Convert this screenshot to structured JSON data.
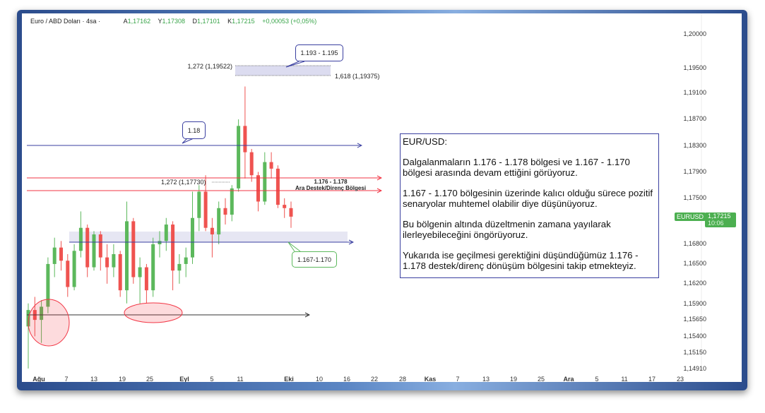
{
  "header": {
    "symbol": "Euro / ABD Doları · 4sa ·",
    "open_label": "A",
    "open": "1,17162",
    "high_label": "Y",
    "high": "1,17308",
    "low_label": "D",
    "low": "1,17101",
    "close_label": "K",
    "close": "1,17215",
    "change": "+0,00053 (+0,05%)"
  },
  "colors": {
    "up": "#5cb85c",
    "down": "#ef5350",
    "frame": "#2b4c8c",
    "accent_blue": "#3a3fa0",
    "resistance_red": "#f23645"
  },
  "y_axis": {
    "ticks": [
      "1,20000",
      "1,19500",
      "1,19100",
      "1,18700",
      "1,18300",
      "1,17900",
      "1,17500",
      "1,16800",
      "1,16500",
      "1,16200",
      "1,15900",
      "1,15650",
      "1,15400",
      "1,15150",
      "1,14910"
    ],
    "range": [
      1.1491,
      1.2
    ]
  },
  "x_axis": {
    "ticks": [
      "Ağu",
      "7",
      "13",
      "19",
      "25",
      "Eyl",
      "5",
      "11",
      "Eki",
      "10",
      "16",
      "22",
      "28",
      "Kas",
      "7",
      "13",
      "19",
      "25",
      "Ara",
      "5",
      "11",
      "17",
      "23"
    ]
  },
  "price_tag": {
    "symbol": "EURUSD",
    "price": "1,17215",
    "time": "10:06"
  },
  "annotations": {
    "fib_top_left": "1,272 (1,19522)",
    "fib_top_right": "1,618 (1,19375)",
    "callout_top": "1.193 - 1.195",
    "callout_118": "1.18",
    "fib_mid": "1,272 (1,17730)",
    "zone_title": "1.176 - 1.178",
    "zone_subtitle": "Ara Destek/Direnç Bölgesi",
    "callout_support": "1.167-1.170"
  },
  "note": {
    "title": "EUR/USD:",
    "paragraphs": [
      "Dalgalanmaların 1.176 - 1.178 bölgesi ve 1.167 - 1.170 bölgesi arasında devam ettiğini görüyoruz.",
      "1.167 - 1.170 bölgesinin üzerinde kalıcı olduğu sürece pozitif senaryolar muhtemel olabilir diye düşünüyoruz.",
      "Bu bölgenin altında düzeltmenin zamana yayılarak ilerleyebileceğini öngörüyoruz.",
      "Yukarıda ise geçilmesi gerektiğini düşündüğümüz 1.176 - 1.178 destek/direnç dönüşüm bölgesini takip etmekteyiz."
    ]
  },
  "chart_data": {
    "type": "candlestick",
    "title": "",
    "xlabel": "",
    "ylabel": "",
    "ylim": [
      1.1491,
      1.2
    ],
    "grid": false,
    "levels": [
      1.18,
      1.178,
      1.176,
      1.17,
      1.167,
      1.1575
    ],
    "candles": [
      [
        "08-01",
        1.1555,
        1.159,
        1.1491,
        1.158
      ],
      [
        "08-04",
        1.158,
        1.16,
        1.154,
        1.1565
      ],
      [
        "08-05",
        1.1565,
        1.1595,
        1.153,
        1.1585
      ],
      [
        "08-06",
        1.1585,
        1.166,
        1.1575,
        1.165
      ],
      [
        "08-07",
        1.165,
        1.169,
        1.163,
        1.1675
      ],
      [
        "08-08",
        1.1675,
        1.1685,
        1.164,
        1.1655
      ],
      [
        "08-11",
        1.1655,
        1.1665,
        1.16,
        1.1615
      ],
      [
        "08-12",
        1.1615,
        1.168,
        1.161,
        1.167
      ],
      [
        "08-13",
        1.167,
        1.173,
        1.166,
        1.1705
      ],
      [
        "08-14",
        1.1705,
        1.171,
        1.163,
        1.1645
      ],
      [
        "08-15",
        1.1645,
        1.17,
        1.164,
        1.1695
      ],
      [
        "08-18",
        1.1695,
        1.17,
        1.164,
        1.166
      ],
      [
        "08-19",
        1.166,
        1.168,
        1.162,
        1.1645
      ],
      [
        "08-20",
        1.1645,
        1.168,
        1.163,
        1.1665
      ],
      [
        "08-21",
        1.1665,
        1.167,
        1.16,
        1.161
      ],
      [
        "08-22",
        1.161,
        1.1745,
        1.159,
        1.1715
      ],
      [
        "08-25",
        1.1715,
        1.172,
        1.162,
        1.163
      ],
      [
        "08-26",
        1.163,
        1.166,
        1.159,
        1.1645
      ],
      [
        "08-27",
        1.1645,
        1.165,
        1.159,
        1.161
      ],
      [
        "08-28",
        1.161,
        1.169,
        1.16,
        1.168
      ],
      [
        "08-29",
        1.168,
        1.17,
        1.166,
        1.1685
      ],
      [
        "09-01",
        1.1685,
        1.172,
        1.167,
        1.171
      ],
      [
        "09-02",
        1.171,
        1.1715,
        1.161,
        1.164
      ],
      [
        "09-03",
        1.164,
        1.1665,
        1.162,
        1.165
      ],
      [
        "09-04",
        1.165,
        1.1675,
        1.163,
        1.166
      ],
      [
        "09-05",
        1.166,
        1.176,
        1.165,
        1.172
      ],
      [
        "09-08",
        1.172,
        1.177,
        1.17,
        1.176
      ],
      [
        "09-09",
        1.176,
        1.1785,
        1.17,
        1.1705
      ],
      [
        "09-10",
        1.1705,
        1.172,
        1.166,
        1.1695
      ],
      [
        "09-11",
        1.1695,
        1.1745,
        1.168,
        1.1735
      ],
      [
        "09-12",
        1.1735,
        1.175,
        1.171,
        1.1725
      ],
      [
        "09-15",
        1.1725,
        1.177,
        1.1715,
        1.1765
      ],
      [
        "09-16",
        1.1765,
        1.187,
        1.176,
        1.186
      ],
      [
        "09-17",
        1.186,
        1.192,
        1.178,
        1.182
      ],
      [
        "09-18",
        1.182,
        1.1825,
        1.1775,
        1.1785
      ],
      [
        "09-19",
        1.1785,
        1.179,
        1.173,
        1.1745
      ],
      [
        "09-22",
        1.1745,
        1.182,
        1.174,
        1.1805
      ],
      [
        "09-23",
        1.1805,
        1.182,
        1.178,
        1.1795
      ],
      [
        "09-24",
        1.1795,
        1.18,
        1.1735,
        1.174
      ],
      [
        "09-25",
        1.174,
        1.175,
        1.172,
        1.1735
      ],
      [
        "09-26",
        1.1735,
        1.1745,
        1.1705,
        1.1722
      ]
    ]
  }
}
